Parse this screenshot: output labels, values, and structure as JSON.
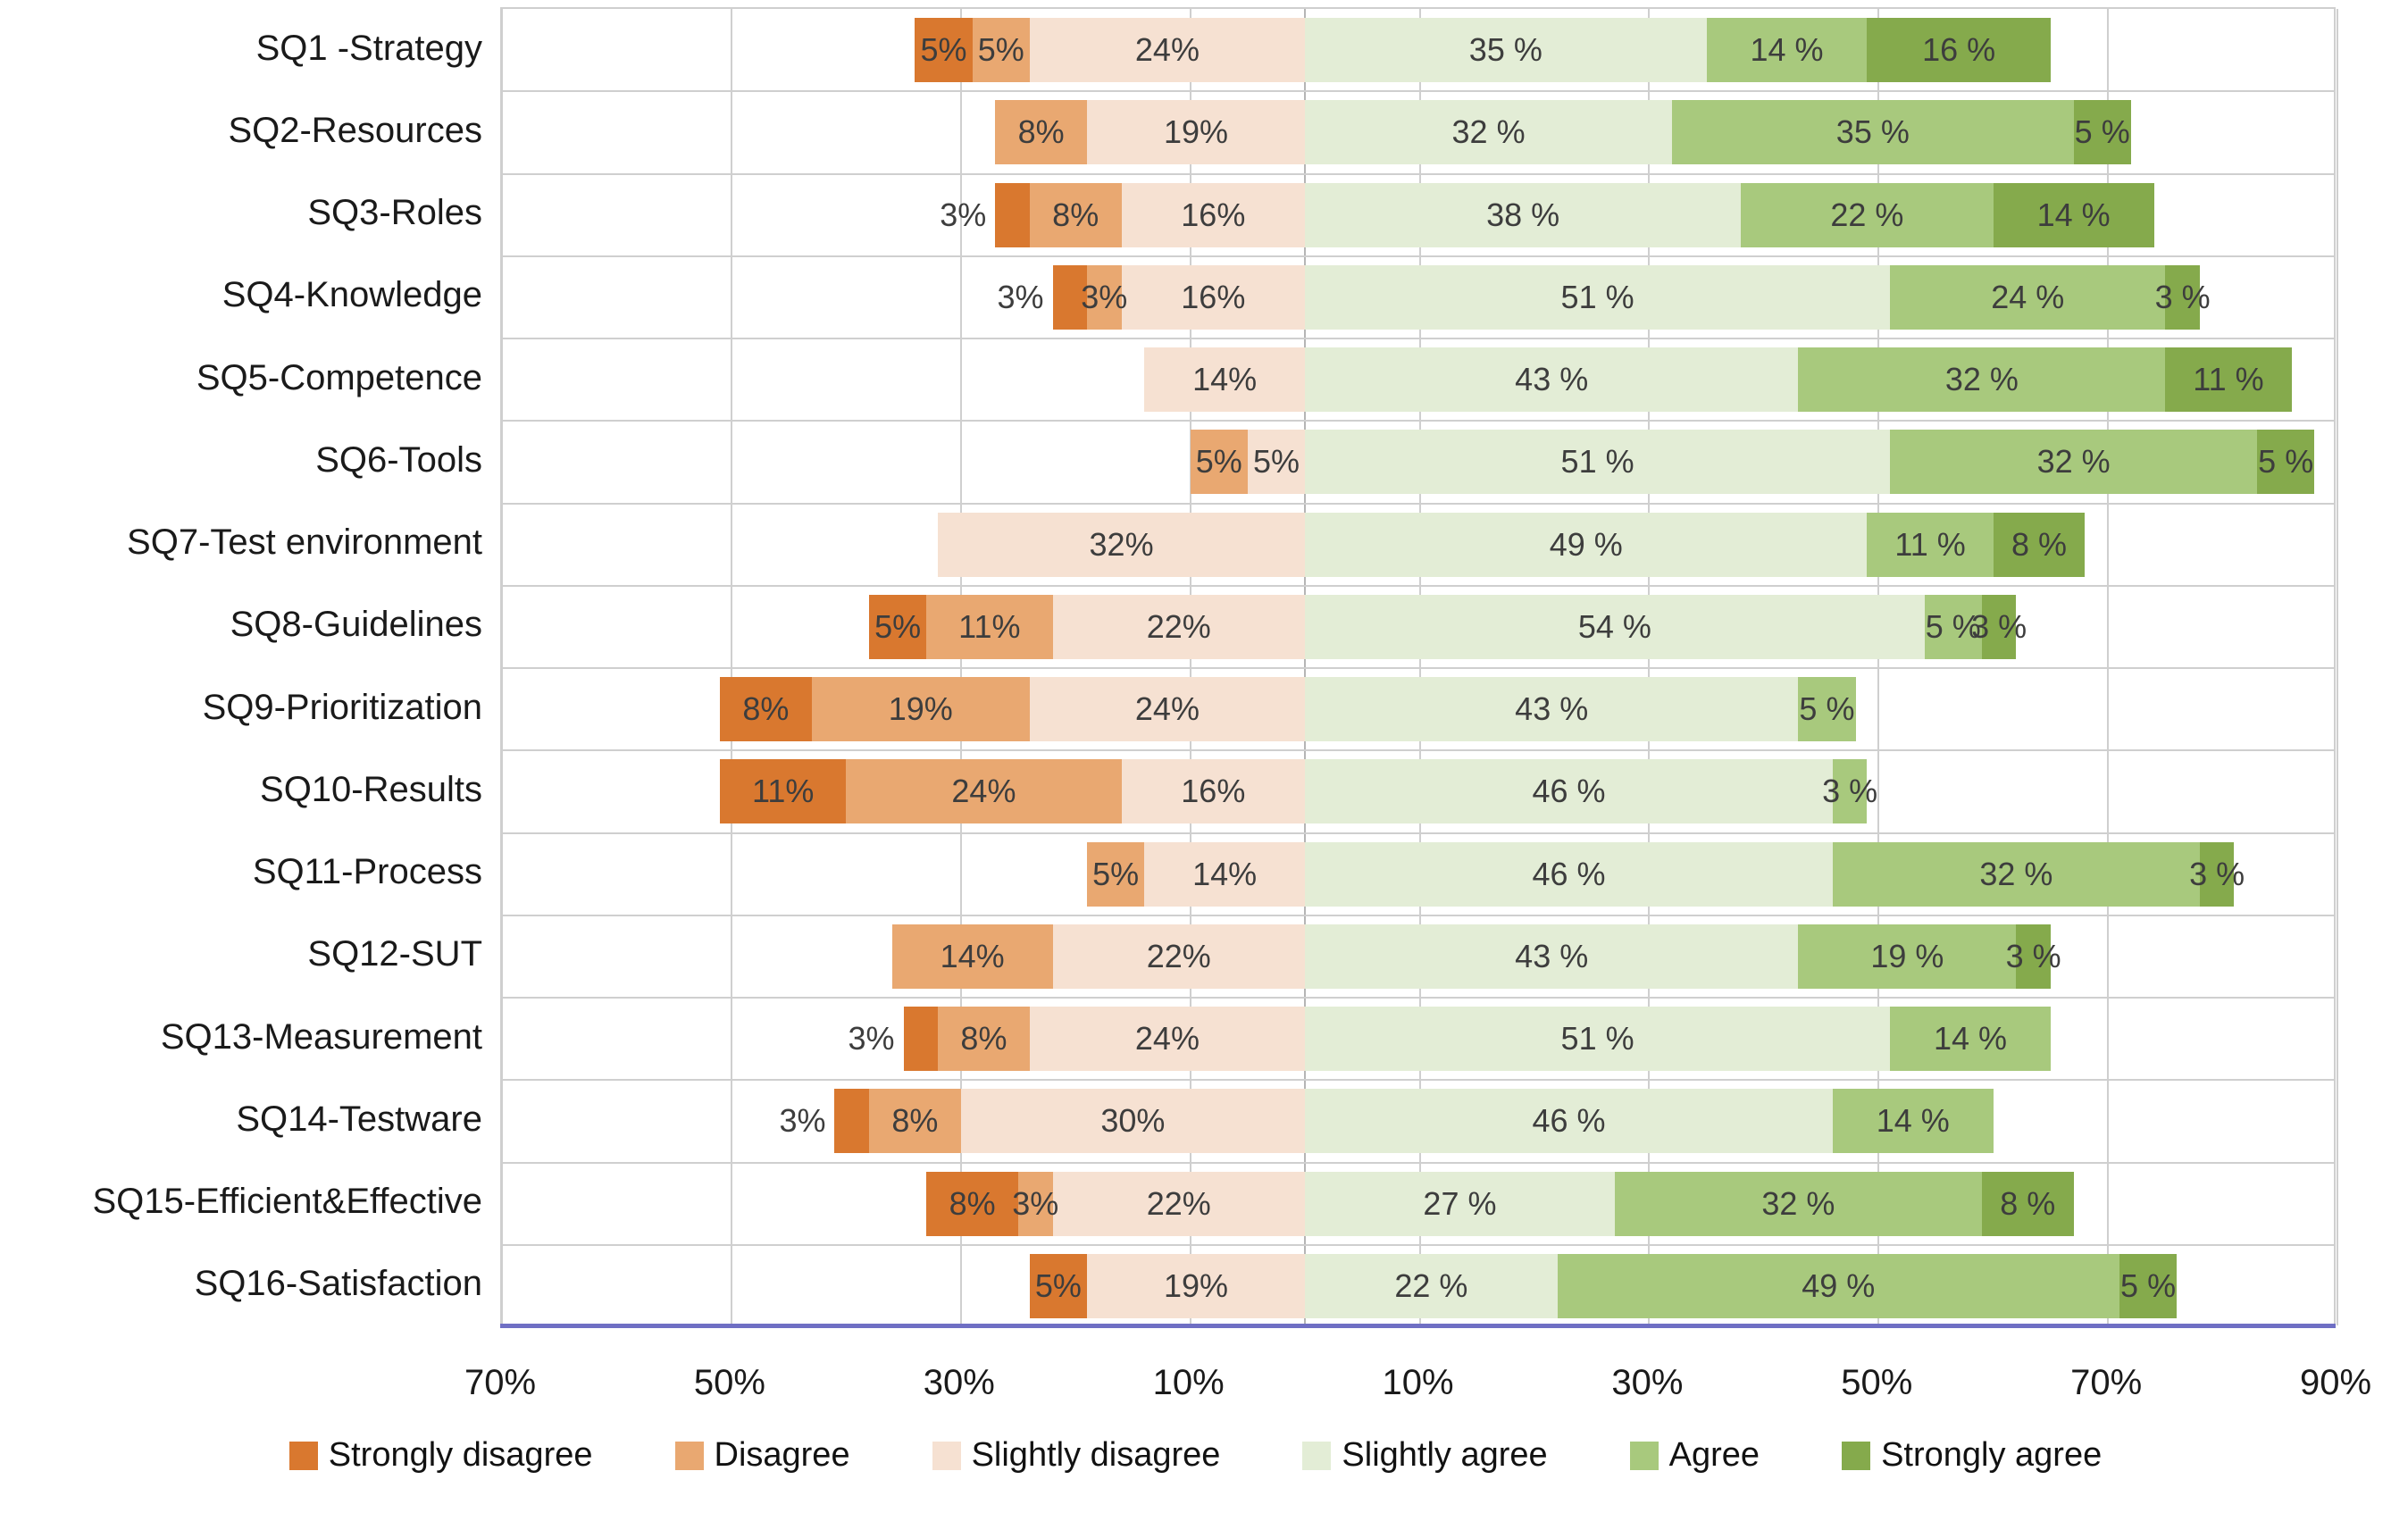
{
  "chart_data": {
    "type": "bar",
    "variant": "diverging_stacked_likert",
    "title": "",
    "categories": [
      "SQ1 -Strategy",
      "SQ2-Resources",
      "SQ3-Roles",
      "SQ4-Knowledge",
      "SQ5-Competence",
      "SQ6-Tools",
      "SQ7-Test environment",
      "SQ8-Guidelines",
      "SQ9-Prioritization",
      "SQ10-Results",
      "SQ11-Process",
      "SQ12-SUT",
      "SQ13-Measurement",
      "SQ14-Testware",
      "SQ15-Efficient&Effective",
      "SQ16-Satisfaction"
    ],
    "series": [
      {
        "name": "Strongly disagree",
        "color": "#D9782F",
        "side": "negative",
        "values": [
          5,
          0,
          3,
          3,
          0,
          0,
          0,
          5,
          8,
          11,
          0,
          0,
          3,
          3,
          8,
          5
        ]
      },
      {
        "name": "Disagree",
        "color": "#E9A871",
        "side": "negative",
        "values": [
          5,
          8,
          8,
          3,
          0,
          5,
          0,
          11,
          19,
          24,
          5,
          14,
          8,
          8,
          3,
          0
        ]
      },
      {
        "name": "Slightly disagree",
        "color": "#F6E1D2",
        "side": "negative",
        "values": [
          24,
          19,
          16,
          16,
          14,
          5,
          32,
          22,
          24,
          16,
          14,
          22,
          24,
          30,
          22,
          19
        ]
      },
      {
        "name": "Slightly agree",
        "color": "#E3EDD6",
        "side": "positive",
        "values": [
          35,
          32,
          38,
          51,
          43,
          51,
          49,
          54,
          43,
          46,
          46,
          43,
          51,
          46,
          27,
          22
        ]
      },
      {
        "name": "Agree",
        "color": "#A8C97D",
        "side": "positive",
        "values": [
          14,
          35,
          22,
          24,
          32,
          32,
          11,
          5,
          5,
          3,
          32,
          19,
          14,
          14,
          32,
          49
        ]
      },
      {
        "name": "Strongly agree",
        "color": "#85AA4C",
        "side": "positive",
        "values": [
          16,
          5,
          14,
          3,
          11,
          5,
          8,
          3,
          0,
          0,
          3,
          3,
          0,
          0,
          8,
          5
        ]
      }
    ],
    "value_label_format": {
      "negative": "{v}%",
      "positive": "{v} %"
    },
    "x_axis": {
      "range": [
        -70,
        90
      ],
      "gridline_step": 20,
      "ticks": [
        {
          "value": -70,
          "label": "70%"
        },
        {
          "value": -50,
          "label": "50%"
        },
        {
          "value": -30,
          "label": "30%"
        },
        {
          "value": -10,
          "label": "10%"
        },
        {
          "value": 10,
          "label": "10%"
        },
        {
          "value": 30,
          "label": "30%"
        },
        {
          "value": 50,
          "label": "50%"
        },
        {
          "value": 70,
          "label": "70%"
        },
        {
          "value": 90,
          "label": "90%"
        }
      ]
    },
    "legend_position": "bottom",
    "grid": true,
    "colors": {
      "axis_line": "#6F6FC4",
      "gridline": "#CFCFCF",
      "segment_label_text": "#3D3D3D",
      "category_text": "#1A1A1A"
    }
  }
}
